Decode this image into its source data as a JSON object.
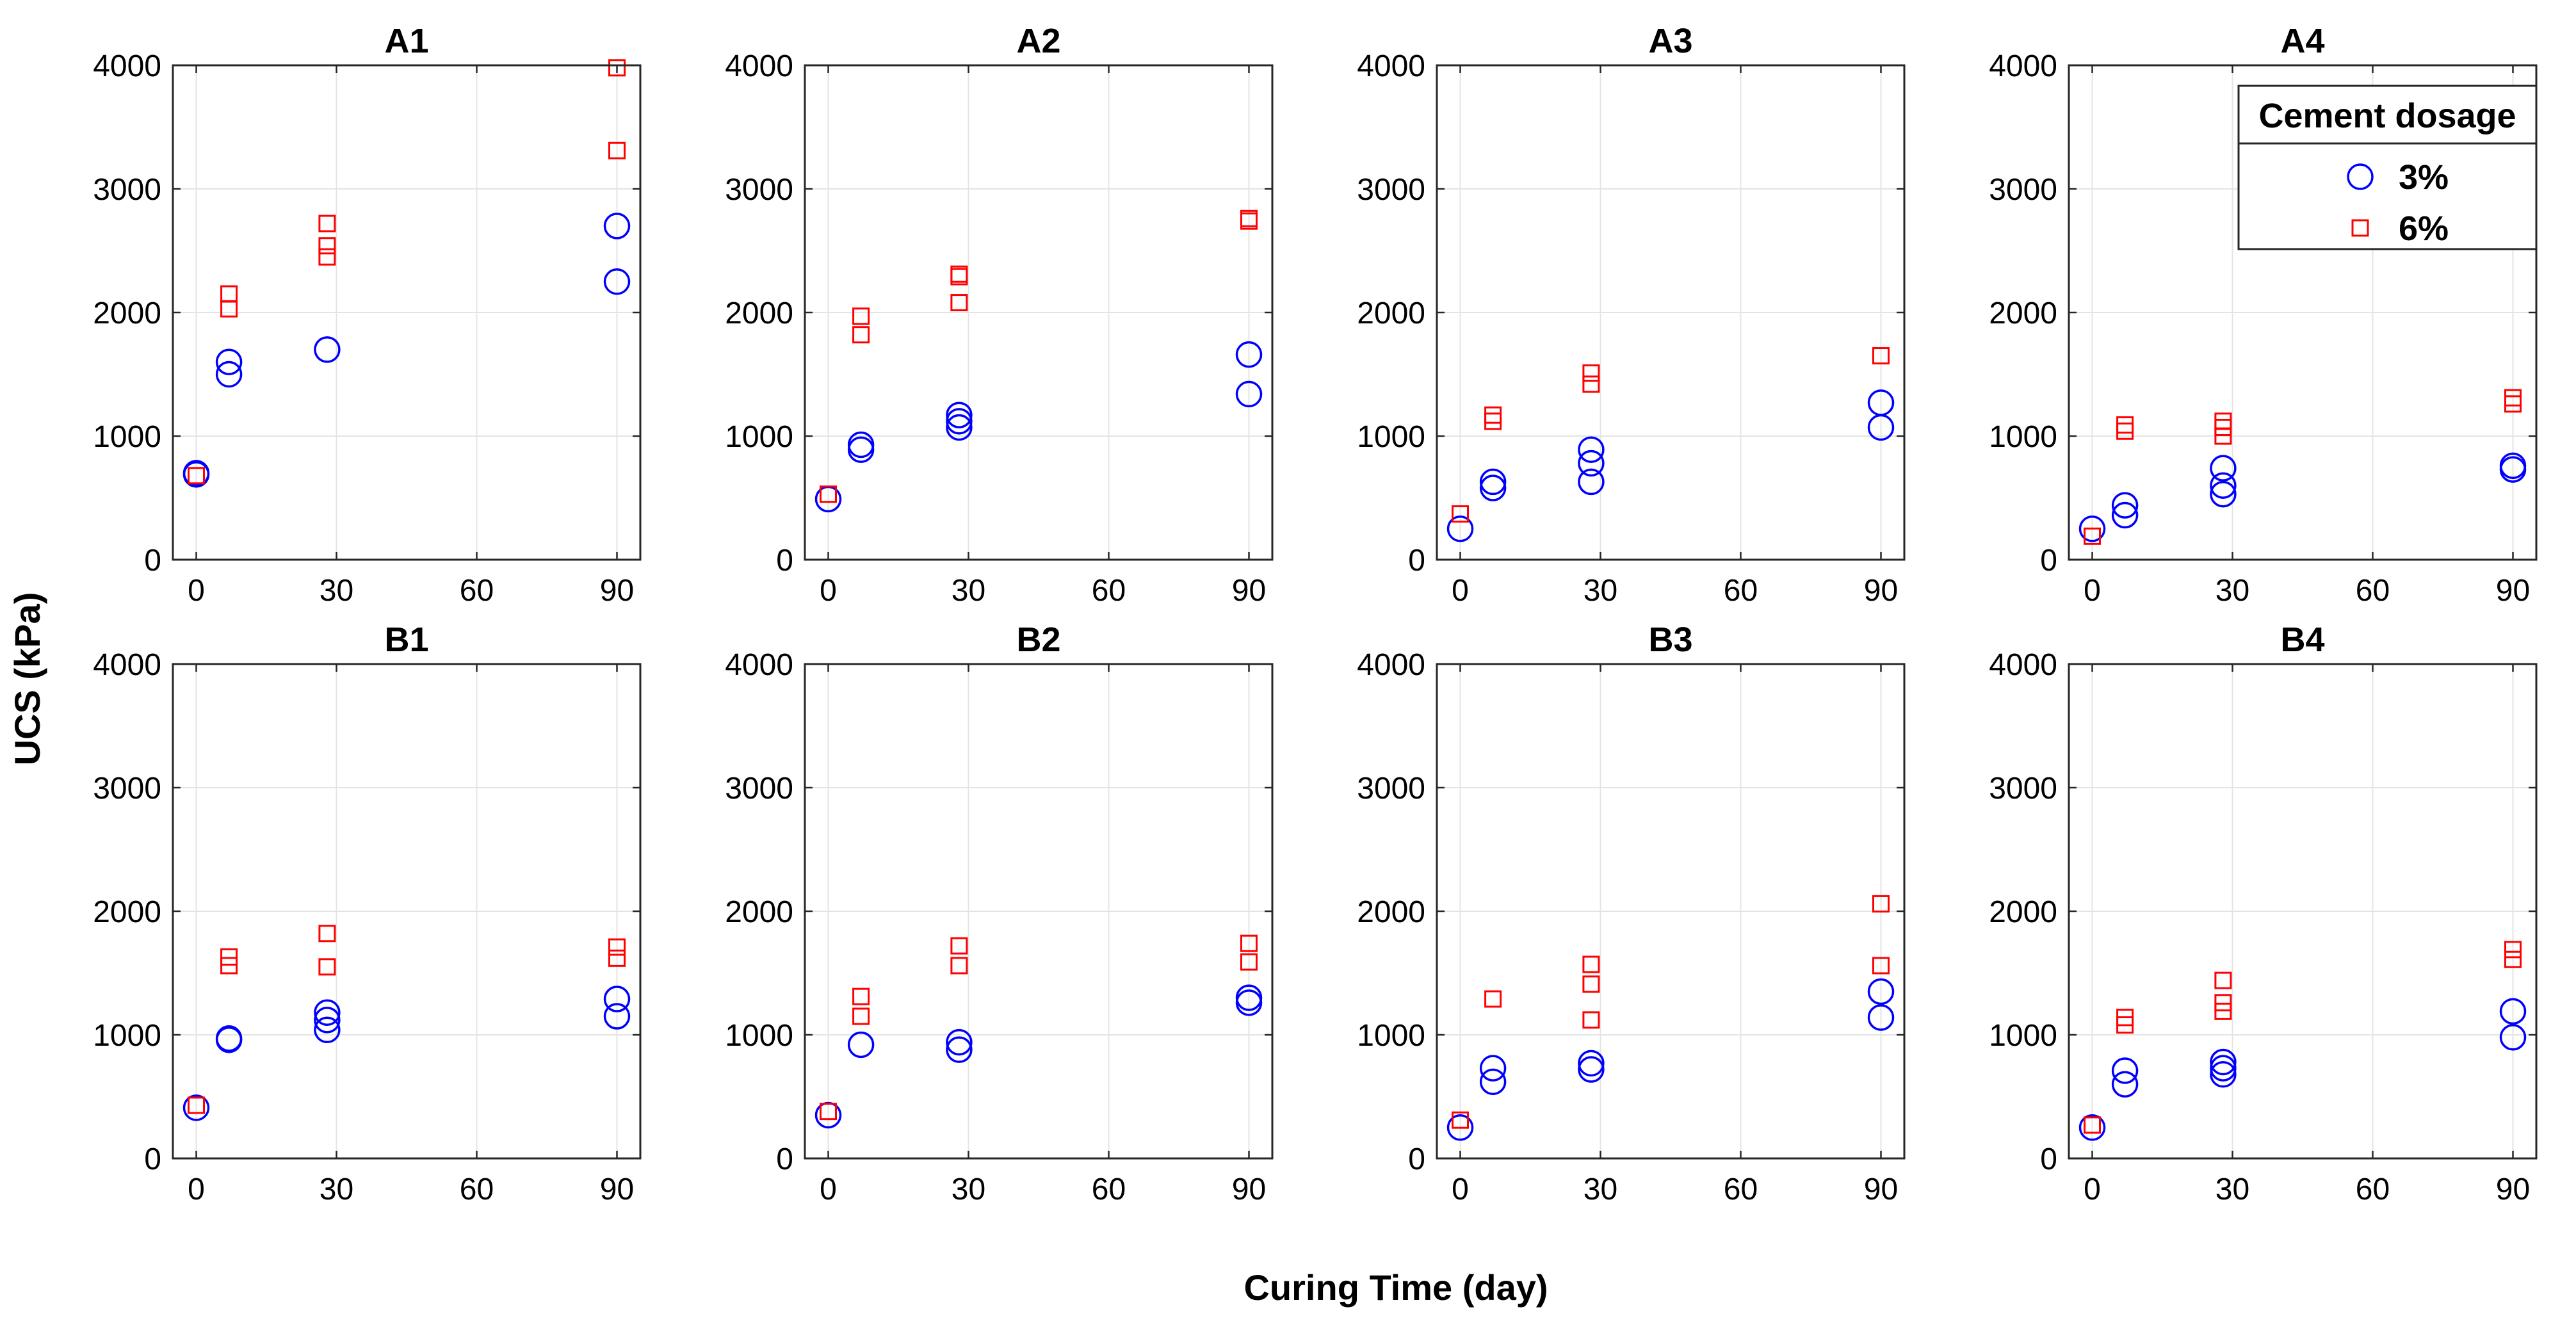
{
  "figure": {
    "ylabel": "UCS (kPa)",
    "xlabel": "Curing Time (day)"
  },
  "colors": {
    "series_3pct": "#0000ff",
    "series_6pct": "#ff0000",
    "grid": "#e4e4e4",
    "axis": "#262626"
  },
  "legend": {
    "title": "Cement dosage",
    "items": [
      {
        "label": "3%",
        "marker": "circle",
        "series": "3%"
      },
      {
        "label": "6%",
        "marker": "square",
        "series": "6%"
      }
    ]
  },
  "chart_data": [
    {
      "type": "scatter",
      "title": "A1",
      "xlabel": "Curing Time (day)",
      "ylabel": "UCS (kPa)",
      "xlim": [
        -5,
        95
      ],
      "ylim": [
        0,
        4000
      ],
      "xticks": [
        0,
        30,
        60,
        90
      ],
      "yticks": [
        0,
        1000,
        2000,
        3000,
        4000
      ],
      "grid": true,
      "series": [
        {
          "name": "3%",
          "marker": "circle",
          "points": [
            [
              0,
              690
            ],
            [
              0,
              700
            ],
            [
              7,
              1500
            ],
            [
              7,
              1600
            ],
            [
              28,
              1700
            ],
            [
              90,
              2250
            ],
            [
              90,
              2700
            ]
          ]
        },
        {
          "name": "6%",
          "marker": "square",
          "points": [
            [
              0,
              680
            ],
            [
              7,
              2030
            ],
            [
              7,
              2150
            ],
            [
              28,
              2450
            ],
            [
              28,
              2540
            ],
            [
              28,
              2720
            ],
            [
              90,
              3310
            ],
            [
              90,
              3980
            ]
          ]
        }
      ]
    },
    {
      "type": "scatter",
      "title": "A2",
      "xlabel": "Curing Time (day)",
      "ylabel": "UCS (kPa)",
      "xlim": [
        -5,
        95
      ],
      "ylim": [
        0,
        4000
      ],
      "xticks": [
        0,
        30,
        60,
        90
      ],
      "yticks": [
        0,
        1000,
        2000,
        3000,
        4000
      ],
      "grid": true,
      "series": [
        {
          "name": "3%",
          "marker": "circle",
          "points": [
            [
              0,
              490
            ],
            [
              7,
              890
            ],
            [
              7,
              930
            ],
            [
              28,
              1070
            ],
            [
              28,
              1120
            ],
            [
              28,
              1170
            ],
            [
              90,
              1340
            ],
            [
              90,
              1660
            ]
          ]
        },
        {
          "name": "6%",
          "marker": "square",
          "points": [
            [
              0,
              530
            ],
            [
              7,
              1820
            ],
            [
              7,
              1970
            ],
            [
              28,
              2080
            ],
            [
              28,
              2290
            ],
            [
              28,
              2310
            ],
            [
              90,
              2740
            ],
            [
              90,
              2760
            ]
          ]
        }
      ]
    },
    {
      "type": "scatter",
      "title": "A3",
      "xlabel": "Curing Time (day)",
      "ylabel": "UCS (kPa)",
      "xlim": [
        -5,
        95
      ],
      "ylim": [
        0,
        4000
      ],
      "xticks": [
        0,
        30,
        60,
        90
      ],
      "yticks": [
        0,
        1000,
        2000,
        3000,
        4000
      ],
      "grid": true,
      "series": [
        {
          "name": "3%",
          "marker": "circle",
          "points": [
            [
              0,
              250
            ],
            [
              7,
              580
            ],
            [
              7,
              630
            ],
            [
              28,
              630
            ],
            [
              28,
              780
            ],
            [
              28,
              890
            ],
            [
              90,
              1070
            ],
            [
              90,
              1270
            ]
          ]
        },
        {
          "name": "6%",
          "marker": "square",
          "points": [
            [
              0,
              370
            ],
            [
              7,
              1120
            ],
            [
              7,
              1170
            ],
            [
              28,
              1420
            ],
            [
              28,
              1510
            ],
            [
              90,
              1650
            ]
          ]
        }
      ]
    },
    {
      "type": "scatter",
      "title": "A4",
      "xlabel": "Curing Time (day)",
      "ylabel": "UCS (kPa)",
      "xlim": [
        -5,
        95
      ],
      "ylim": [
        0,
        4000
      ],
      "xticks": [
        0,
        30,
        60,
        90
      ],
      "yticks": [
        0,
        1000,
        2000,
        3000,
        4000
      ],
      "grid": true,
      "series": [
        {
          "name": "3%",
          "marker": "circle",
          "points": [
            [
              0,
              250
            ],
            [
              7,
              360
            ],
            [
              7,
              440
            ],
            [
              28,
              530
            ],
            [
              28,
              600
            ],
            [
              28,
              740
            ],
            [
              90,
              730
            ],
            [
              90,
              760
            ]
          ]
        },
        {
          "name": "6%",
          "marker": "square",
          "points": [
            [
              0,
              190
            ],
            [
              7,
              1040
            ],
            [
              7,
              1090
            ],
            [
              28,
              1000
            ],
            [
              28,
              1070
            ],
            [
              28,
              1120
            ],
            [
              90,
              1260
            ],
            [
              90,
              1310
            ]
          ]
        }
      ]
    },
    {
      "type": "scatter",
      "title": "B1",
      "xlabel": "Curing Time (day)",
      "ylabel": "UCS (kPa)",
      "xlim": [
        -5,
        95
      ],
      "ylim": [
        0,
        4000
      ],
      "xticks": [
        0,
        30,
        60,
        90
      ],
      "yticks": [
        0,
        1000,
        2000,
        3000,
        4000
      ],
      "grid": true,
      "series": [
        {
          "name": "3%",
          "marker": "circle",
          "points": [
            [
              0,
              410
            ],
            [
              7,
              960
            ],
            [
              7,
              970
            ],
            [
              28,
              1040
            ],
            [
              28,
              1120
            ],
            [
              28,
              1180
            ],
            [
              90,
              1150
            ],
            [
              90,
              1290
            ]
          ]
        },
        {
          "name": "6%",
          "marker": "square",
          "points": [
            [
              0,
              430
            ],
            [
              7,
              1560
            ],
            [
              7,
              1630
            ],
            [
              28,
              1550
            ],
            [
              28,
              1820
            ],
            [
              90,
              1620
            ],
            [
              90,
              1710
            ]
          ]
        }
      ]
    },
    {
      "type": "scatter",
      "title": "B2",
      "xlabel": "Curing Time (day)",
      "ylabel": "UCS (kPa)",
      "xlim": [
        -5,
        95
      ],
      "ylim": [
        0,
        4000
      ],
      "xticks": [
        0,
        30,
        60,
        90
      ],
      "yticks": [
        0,
        1000,
        2000,
        3000,
        4000
      ],
      "grid": true,
      "series": [
        {
          "name": "3%",
          "marker": "circle",
          "points": [
            [
              0,
              350
            ],
            [
              7,
              920
            ],
            [
              28,
              880
            ],
            [
              28,
              940
            ],
            [
              90,
              1260
            ],
            [
              90,
              1300
            ]
          ]
        },
        {
          "name": "6%",
          "marker": "square",
          "points": [
            [
              0,
              380
            ],
            [
              7,
              1150
            ],
            [
              7,
              1310
            ],
            [
              28,
              1560
            ],
            [
              28,
              1720
            ],
            [
              90,
              1590
            ],
            [
              90,
              1740
            ]
          ]
        }
      ]
    },
    {
      "type": "scatter",
      "title": "B3",
      "xlabel": "Curing Time (day)",
      "ylabel": "UCS (kPa)",
      "xlim": [
        -5,
        95
      ],
      "ylim": [
        0,
        4000
      ],
      "xticks": [
        0,
        30,
        60,
        90
      ],
      "yticks": [
        0,
        1000,
        2000,
        3000,
        4000
      ],
      "grid": true,
      "series": [
        {
          "name": "3%",
          "marker": "circle",
          "points": [
            [
              0,
              250
            ],
            [
              7,
              620
            ],
            [
              7,
              730
            ],
            [
              28,
              720
            ],
            [
              28,
              770
            ],
            [
              90,
              1140
            ],
            [
              90,
              1350
            ]
          ]
        },
        {
          "name": "6%",
          "marker": "square",
          "points": [
            [
              0,
              310
            ],
            [
              7,
              1290
            ],
            [
              28,
              1120
            ],
            [
              28,
              1410
            ],
            [
              28,
              1570
            ],
            [
              90,
              1560
            ],
            [
              90,
              2060
            ]
          ]
        }
      ]
    },
    {
      "type": "scatter",
      "title": "B4",
      "xlabel": "Curing Time (day)",
      "ylabel": "UCS (kPa)",
      "xlim": [
        -5,
        95
      ],
      "ylim": [
        0,
        4000
      ],
      "xticks": [
        0,
        30,
        60,
        90
      ],
      "yticks": [
        0,
        1000,
        2000,
        3000,
        4000
      ],
      "grid": true,
      "series": [
        {
          "name": "3%",
          "marker": "circle",
          "points": [
            [
              0,
              250
            ],
            [
              7,
              600
            ],
            [
              7,
              710
            ],
            [
              28,
              680
            ],
            [
              28,
              730
            ],
            [
              28,
              780
            ],
            [
              90,
              980
            ],
            [
              90,
              1190
            ]
          ]
        },
        {
          "name": "6%",
          "marker": "square",
          "points": [
            [
              0,
              270
            ],
            [
              7,
              1080
            ],
            [
              7,
              1140
            ],
            [
              28,
              1190
            ],
            [
              28,
              1260
            ],
            [
              28,
              1440
            ],
            [
              90,
              1610
            ],
            [
              90,
              1690
            ]
          ]
        }
      ]
    }
  ]
}
